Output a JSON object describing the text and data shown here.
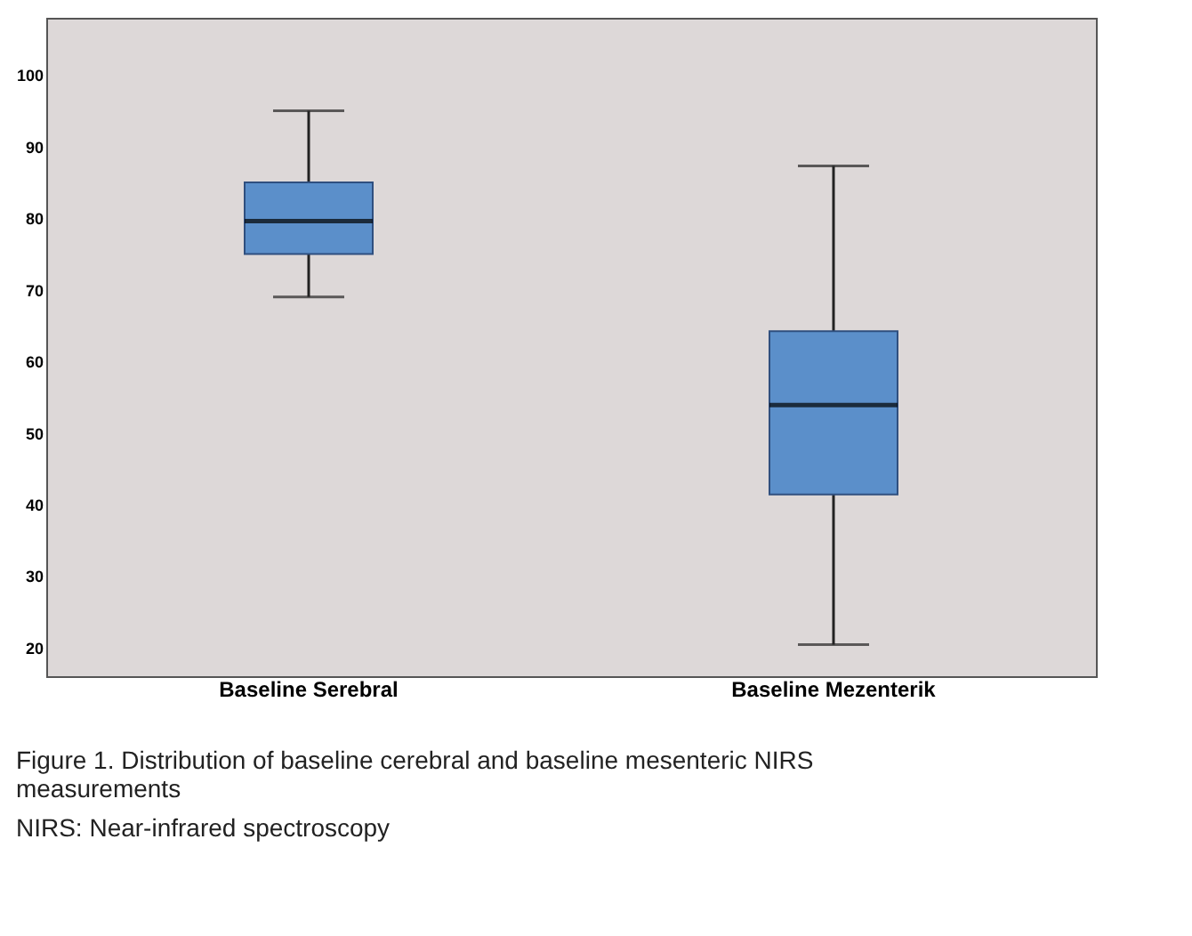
{
  "chart_data": {
    "type": "box",
    "title": "Figure 1. Distribution of baseline cerebral and baseline mesenteric NIRS measurements",
    "annotations": [
      "NIRS: Near-infrared spectroscopy"
    ],
    "categories": [
      "Baseline Serebral",
      "Baseline Mezenterik"
    ],
    "boxes": [
      {
        "low": 69,
        "q1": 75,
        "median": 79.6,
        "q3": 85,
        "high": 95
      },
      {
        "low": 20.4,
        "q1": 41.4,
        "median": 53.9,
        "q3": 64.2,
        "high": 87.3
      }
    ],
    "color": "#5b8fca",
    "ylim": [
      16,
      108
    ],
    "yticks": [
      20,
      30,
      40,
      50,
      60,
      70,
      80,
      90,
      100
    ],
    "grid": false
  }
}
